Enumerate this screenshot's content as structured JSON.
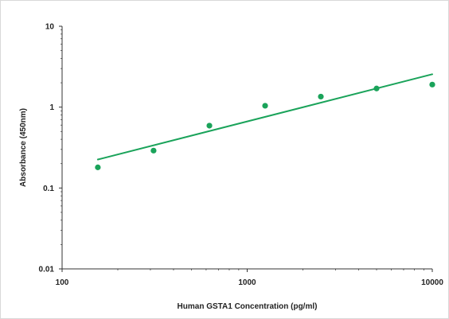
{
  "chart_data": {
    "type": "scatter",
    "title": "",
    "xlabel": "Human GSTA1 Concentration (pg/ml)",
    "ylabel": "Absorbance (450nm)",
    "x_scale": "log",
    "y_scale": "log",
    "xlim": [
      100,
      10000
    ],
    "ylim": [
      0.01,
      10
    ],
    "x_ticks": [
      "100",
      "1000",
      "10000"
    ],
    "y_ticks": [
      "10",
      "1",
      "0.1",
      "0.01"
    ],
    "grid": false,
    "legend": "none",
    "series": [
      {
        "x": [
          156,
          312,
          625,
          1250,
          2500,
          5000,
          10000
        ],
        "y": [
          0.18,
          0.29,
          0.59,
          1.04,
          1.35,
          1.7,
          1.9
        ]
      }
    ],
    "trendline": {
      "x": [
        156,
        10000
      ],
      "y": [
        0.225,
        2.55
      ]
    },
    "colors": {
      "points": "#1aa35a",
      "line": "#1aa35a",
      "axis": "#333333"
    }
  }
}
